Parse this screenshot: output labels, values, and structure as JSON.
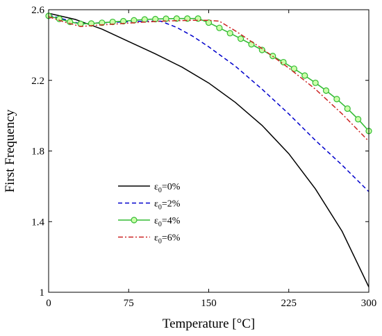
{
  "chart_data": {
    "type": "line",
    "xlabel": "Temperature [°C]",
    "ylabel": "First Frequency",
    "xlim": [
      0,
      300
    ],
    "ylim": [
      1,
      2.6
    ],
    "x_ticks": [
      "0",
      "75",
      "150",
      "225",
      "300"
    ],
    "y_ticks": [
      "1",
      "1.4",
      "1.8",
      "2.2",
      "2.6"
    ],
    "grid": false,
    "legend_position": "center-left",
    "series": [
      {
        "name": "ε0=0%",
        "label_main": "ε",
        "label_sub": "0",
        "label_tail": "=0%",
        "color": "#000000",
        "style": "solid",
        "x": [
          0,
          25,
          50,
          75,
          100,
          125,
          150,
          175,
          200,
          225,
          250,
          275,
          300
        ],
        "y": [
          2.58,
          2.545,
          2.49,
          2.42,
          2.35,
          2.275,
          2.185,
          2.075,
          1.945,
          1.785,
          1.585,
          1.345,
          1.03
        ]
      },
      {
        "name": "ε0=2%",
        "label_main": "ε",
        "label_sub": "0",
        "label_tail": "=2%",
        "color": "#0000cc",
        "style": "dashed",
        "x": [
          0,
          15,
          30,
          45,
          60,
          75,
          90,
          105,
          120,
          135,
          150,
          175,
          200,
          225,
          250,
          275,
          300
        ],
        "y": [
          2.57,
          2.545,
          2.52,
          2.525,
          2.528,
          2.532,
          2.535,
          2.535,
          2.5,
          2.45,
          2.39,
          2.28,
          2.15,
          2.01,
          1.86,
          1.72,
          1.57
        ]
      },
      {
        "name": "ε0=4%",
        "label_main": "ε",
        "label_sub": "0",
        "label_tail": "=4%",
        "color": "#33bb33",
        "marker_fill": "#ccffaa",
        "style": "solid-circle",
        "x": [
          0,
          10,
          20,
          30,
          40,
          50,
          60,
          70,
          80,
          90,
          100,
          110,
          120,
          130,
          140,
          150,
          160,
          170,
          180,
          190,
          200,
          210,
          220,
          230,
          240,
          250,
          260,
          270,
          280,
          290,
          300
        ],
        "y": [
          2.565,
          2.548,
          2.531,
          2.52,
          2.522,
          2.526,
          2.531,
          2.535,
          2.54,
          2.545,
          2.547,
          2.549,
          2.55,
          2.55,
          2.55,
          2.527,
          2.497,
          2.467,
          2.436,
          2.404,
          2.372,
          2.338,
          2.303,
          2.266,
          2.227,
          2.186,
          2.142,
          2.094,
          2.04,
          1.98,
          1.913
        ]
      },
      {
        "name": "ε0=6%",
        "label_main": "ε",
        "label_sub": "0",
        "label_tail": "=6%",
        "color": "#cc2222",
        "style": "dashdot",
        "x": [
          0,
          15,
          30,
          45,
          60,
          75,
          90,
          105,
          120,
          135,
          150,
          160,
          175,
          200,
          225,
          250,
          275,
          300
        ],
        "y": [
          2.56,
          2.53,
          2.505,
          2.512,
          2.518,
          2.524,
          2.53,
          2.535,
          2.538,
          2.54,
          2.54,
          2.535,
          2.48,
          2.38,
          2.27,
          2.15,
          2.01,
          1.855
        ]
      }
    ]
  }
}
